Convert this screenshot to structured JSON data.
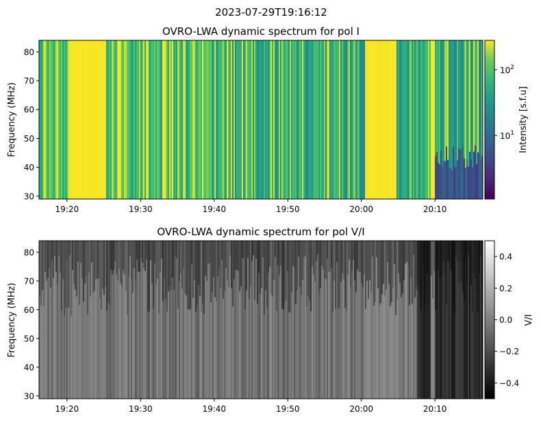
{
  "suptitle": "2023-07-29T19:16:12",
  "chart_data": [
    {
      "type": "heatmap",
      "title": "OVRO-LWA dynamic spectrum for pol I",
      "xlabel": "",
      "ylabel": "Frequency (MHz)",
      "xlim": [
        "19:16:12",
        "20:16:30"
      ],
      "ylim": [
        29,
        84
      ],
      "xticks": [
        "19:20",
        "19:30",
        "19:40",
        "19:50",
        "20:00",
        "20:10"
      ],
      "yticks": [
        30,
        40,
        50,
        60,
        70,
        80
      ],
      "colormap": "viridis",
      "color_scale": "log",
      "colorbar": {
        "label": "Intensity [s.f.u]",
        "range": [
          1.5,
          220
        ],
        "ticks": [
          "10^1",
          "10^2"
        ]
      },
      "bright_bursts": [
        {
          "start": "20:00:30",
          "end": "20:04:45",
          "freq": [
            29,
            84
          ]
        },
        {
          "start": "19:20:30",
          "end": "19:25:00",
          "freq": [
            29,
            84
          ]
        },
        {
          "start": "20:09:30",
          "end": "20:10:00",
          "freq": [
            29,
            84
          ]
        }
      ]
    },
    {
      "type": "heatmap",
      "title": "OVRO-LWA dynamic spectrum for pol V/I",
      "xlabel": "",
      "ylabel": "Frequency (MHz)",
      "xlim": [
        "19:16:12",
        "20:16:30"
      ],
      "ylim": [
        29,
        84
      ],
      "xticks": [
        "19:20",
        "19:30",
        "19:40",
        "19:50",
        "20:00",
        "20:10"
      ],
      "yticks": [
        30,
        40,
        50,
        60,
        70,
        80
      ],
      "colormap": "gray",
      "color_scale": "linear",
      "colorbar": {
        "label": "V/I",
        "range": [
          -0.5,
          0.5
        ],
        "ticks": [
          0.4,
          0.2,
          0.0,
          -0.2,
          -0.4
        ],
        "tick_labels": [
          "0.4",
          "0.2",
          "0.0",
          "−0.2",
          "−0.4"
        ]
      }
    }
  ],
  "ticks_y": [
    "30",
    "40",
    "50",
    "60",
    "70",
    "80"
  ],
  "ticks_x": [
    "19:20",
    "19:30",
    "19:40",
    "19:50",
    "20:00",
    "20:10"
  ],
  "cbar1_ticks": [
    "10",
    "10"
  ],
  "cbar1_exps": [
    "1",
    "2"
  ]
}
